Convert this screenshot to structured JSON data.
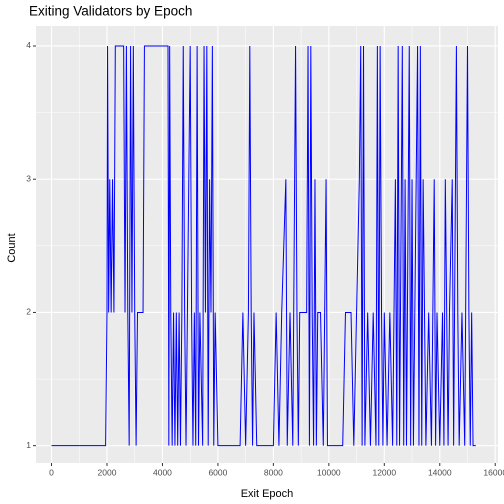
{
  "chart_data": {
    "type": "line",
    "title": "Exiting Validators by Epoch",
    "x_label": "Exit Epoch",
    "y_label": "Count",
    "xlim": [
      -560,
      16100
    ],
    "ylim": [
      0.87,
      4.15
    ],
    "xticks": [
      0,
      2000,
      4000,
      6000,
      8000,
      10000,
      12000,
      14000,
      16000
    ],
    "yticks": [
      1,
      2,
      3,
      4
    ],
    "grid": true,
    "series": [
      {
        "name": "Count",
        "color": "#0000ff",
        "x": [
          0,
          1950,
          2000,
          2020,
          2060,
          2100,
          2150,
          2200,
          2250,
          2300,
          2600,
          2650,
          2700,
          2750,
          2800,
          2850,
          2900,
          2950,
          3000,
          3050,
          3100,
          3300,
          3350,
          4200,
          4230,
          4260,
          4300,
          4350,
          4400,
          4450,
          4500,
          4550,
          4600,
          4650,
          4700,
          4750,
          4800,
          4850,
          4900,
          5000,
          5050,
          5100,
          5150,
          5200,
          5250,
          5300,
          5350,
          5450,
          5500,
          5550,
          5600,
          5650,
          5700,
          5750,
          5800,
          5850,
          5900,
          6000,
          6800,
          6900,
          7000,
          7100,
          7150,
          7200,
          7250,
          7300,
          7400,
          8000,
          8100,
          8200,
          8300,
          8450,
          8500,
          8600,
          8700,
          8800,
          8850,
          8900,
          8950,
          9200,
          9250,
          9300,
          9350,
          9400,
          9450,
          9500,
          9550,
          9600,
          9700,
          9800,
          9900,
          9950,
          10500,
          10600,
          10800,
          10900,
          11000,
          11100,
          11150,
          11200,
          11250,
          11300,
          11400,
          11500,
          11600,
          11700,
          11750,
          11800,
          11850,
          11900,
          11950,
          12000,
          12100,
          12200,
          12300,
          12400,
          12450,
          12500,
          12550,
          12650,
          12700,
          12750,
          12800,
          12900,
          12950,
          13000,
          13050,
          13100,
          13200,
          13250,
          13300,
          13350,
          13400,
          13450,
          13500,
          13600,
          13700,
          13800,
          13850,
          13900,
          14000,
          14100,
          14150,
          14200,
          14250,
          14300,
          14350,
          14450,
          14500,
          14600,
          14650,
          14700,
          14800,
          14900,
          15000,
          15050,
          15100,
          15150,
          15200,
          15300
        ],
        "values": [
          1,
          1,
          2,
          4,
          2,
          3,
          2,
          3,
          2,
          4,
          4,
          2,
          4,
          2,
          1,
          4,
          2,
          4,
          2,
          1,
          2,
          2,
          4,
          4,
          1,
          4,
          2,
          1,
          2,
          1,
          2,
          1,
          2,
          1,
          2,
          4,
          2,
          1,
          2,
          4,
          2,
          1,
          2,
          1,
          4,
          1,
          2,
          1,
          4,
          2,
          4,
          1,
          3,
          2,
          4,
          1,
          2,
          1,
          1,
          2,
          1,
          2,
          4,
          2,
          1,
          2,
          1,
          1,
          2,
          1,
          2,
          3,
          1,
          2,
          1,
          4,
          2,
          1,
          2,
          2,
          4,
          1,
          4,
          2,
          1,
          3,
          1,
          2,
          2,
          1,
          3,
          1,
          1,
          2,
          2,
          1,
          2,
          3,
          4,
          1,
          4,
          1,
          2,
          1,
          2,
          1,
          4,
          1,
          4,
          2,
          1,
          2,
          1,
          2,
          1,
          3,
          1,
          4,
          1,
          4,
          1,
          3,
          1,
          4,
          1,
          3,
          1,
          2,
          4,
          1,
          4,
          1,
          3,
          2,
          1,
          2,
          1,
          3,
          1,
          2,
          1,
          2,
          1,
          3,
          2,
          1,
          2,
          3,
          1,
          4,
          2,
          1,
          2,
          1,
          4,
          2,
          1,
          2,
          1,
          1
        ]
      }
    ]
  }
}
